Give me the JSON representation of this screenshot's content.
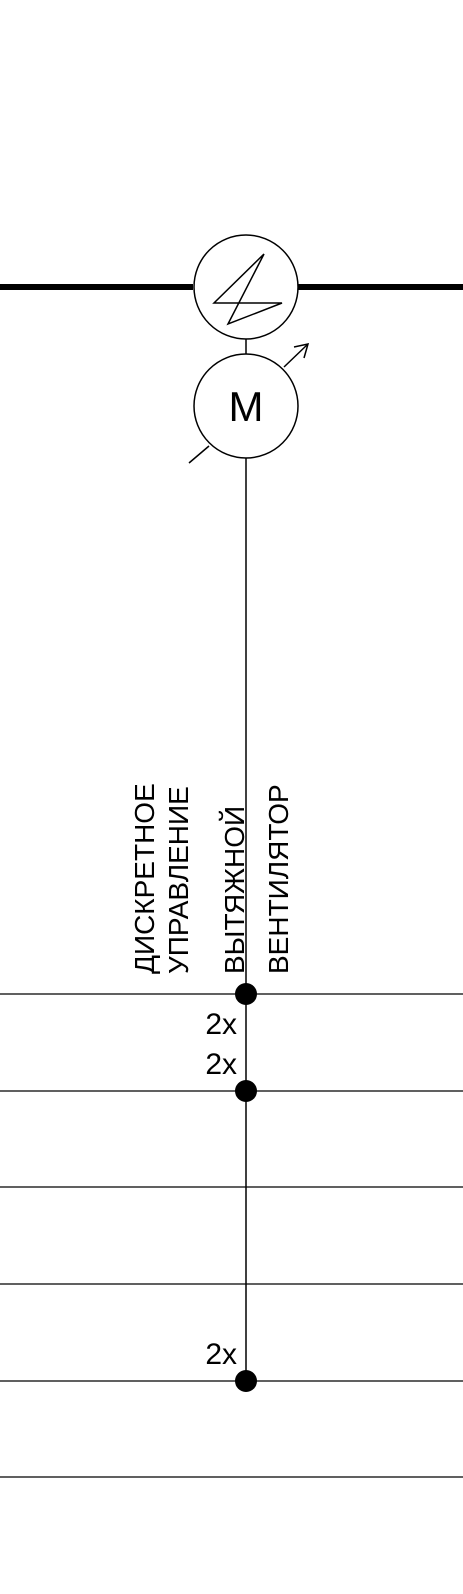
{
  "diagram": {
    "motor_symbol": "M",
    "labels": {
      "line1": "ДИСКРЕТНОЕ",
      "line2": "УПРАВЛЕНИЕ",
      "line3": "ВЫТЯЖНОЙ",
      "line4": "ВЕНТИЛЯТОР"
    },
    "connection_counts": {
      "bus_1": "2x",
      "bus_2": "2x",
      "bus_5": "2x"
    }
  }
}
